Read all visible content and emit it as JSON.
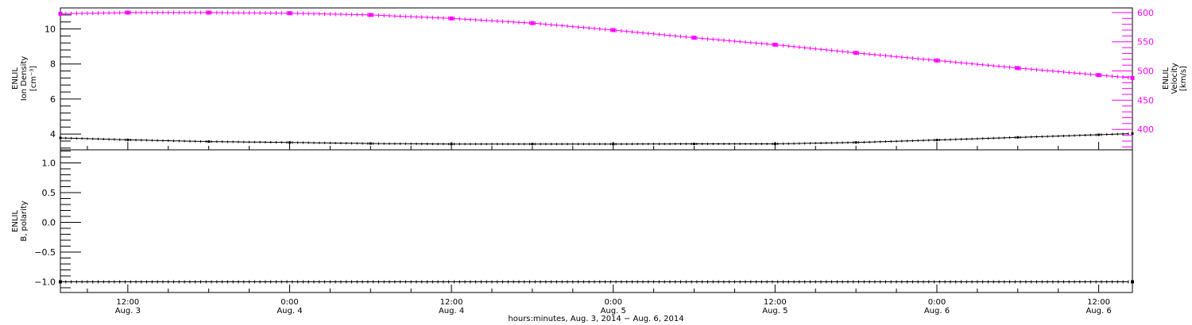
{
  "colors": {
    "density": "#000000",
    "velocity": "#ff00ff",
    "polarity": "#000000",
    "frame": "#000000"
  },
  "chart_data": [
    {
      "type": "line",
      "panel": "top",
      "xlabel": "hours:minutes, Aug.  3, 2014  −  Aug.  6, 2014",
      "x_ticks": [
        {
          "time": "12:00",
          "date": "Aug. 3",
          "hours": 12
        },
        {
          "time": "0:00",
          "date": "Aug. 4",
          "hours": 24
        },
        {
          "time": "12:00",
          "date": "Aug. 4",
          "hours": 36
        },
        {
          "time": "0:00",
          "date": "Aug. 5",
          "hours": 48
        },
        {
          "time": "12:00",
          "date": "Aug. 5",
          "hours": 60
        },
        {
          "time": "0:00",
          "date": "Aug. 6",
          "hours": 72
        },
        {
          "time": "12:00",
          "date": "Aug. 6",
          "hours": 84
        }
      ],
      "xlim_hours": [
        7,
        86.5
      ],
      "left_axis": {
        "label_lines": [
          "ENLIL",
          "Ion Density",
          "[cm⁻³]"
        ],
        "ylim": [
          3.1,
          11.2
        ],
        "ticks": [
          "4",
          "6",
          "8",
          "10"
        ]
      },
      "right_axis": {
        "label_lines": [
          "ENLIL",
          "Velocity",
          "[km/s]"
        ],
        "ylim": [
          365,
          608
        ],
        "ticks": [
          "400",
          "450",
          "500",
          "550",
          "600"
        ]
      },
      "series": [
        {
          "name": "Ion Density",
          "axis": "left",
          "x_hours": [
            7,
            12,
            18,
            24,
            30,
            36,
            42,
            48,
            54,
            60,
            66,
            72,
            78,
            84,
            86.5
          ],
          "values": [
            3.78,
            3.67,
            3.57,
            3.52,
            3.46,
            3.43,
            3.43,
            3.43,
            3.44,
            3.44,
            3.52,
            3.66,
            3.81,
            3.96,
            4.03
          ]
        },
        {
          "name": "Velocity",
          "axis": "right",
          "x_hours": [
            7,
            12,
            18,
            24,
            30,
            36,
            42,
            48,
            54,
            60,
            66,
            72,
            78,
            84,
            86.5
          ],
          "values": [
            598,
            600,
            600,
            599,
            596,
            590,
            582,
            570,
            557,
            545,
            531,
            518,
            505,
            493,
            488
          ]
        }
      ]
    },
    {
      "type": "line",
      "panel": "bottom",
      "left_axis": {
        "label_lines": [
          "ENLIL",
          "B, polarity"
        ],
        "ylim": [
          -1.18,
          1.22
        ],
        "ticks": [
          "−1.0",
          "−0.5",
          "0.0",
          "0.5",
          "1.0"
        ]
      },
      "series": [
        {
          "name": "B, polarity",
          "axis": "left",
          "x_hours": [
            7,
            86.5
          ],
          "values": [
            -1.0,
            -1.0
          ]
        }
      ]
    }
  ]
}
